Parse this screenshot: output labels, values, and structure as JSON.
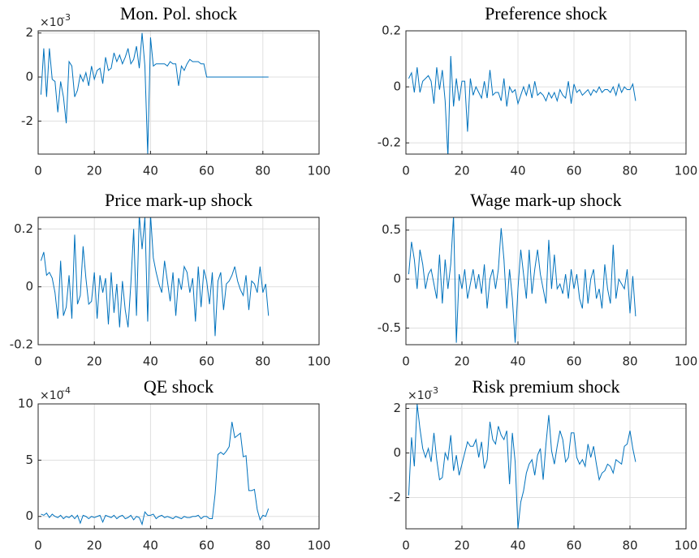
{
  "chart_data": [
    {
      "type": "line",
      "title": "Mon. Pol. shock",
      "y_scale_base": "×10",
      "y_scale_exponent": "-3",
      "x": [
        1,
        2,
        3,
        4,
        5,
        6,
        7,
        8,
        9,
        10,
        11,
        12,
        13,
        14,
        15,
        16,
        17,
        18,
        19,
        20,
        21,
        22,
        23,
        24,
        25,
        26,
        27,
        28,
        29,
        30,
        31,
        32,
        33,
        34,
        35,
        36,
        37,
        38,
        39,
        40,
        41,
        42,
        43,
        44,
        45,
        46,
        47,
        48,
        49,
        50,
        51,
        52,
        53,
        54,
        55,
        56,
        57,
        58,
        59,
        60,
        61,
        62,
        63,
        64,
        65,
        66,
        67,
        68,
        69,
        70,
        71,
        72,
        73,
        74,
        75,
        76,
        77,
        78,
        79,
        80,
        81,
        82
      ],
      "values": [
        -0.8,
        1.3,
        -0.9,
        1.3,
        -0.1,
        -0.2,
        -1.6,
        -0.2,
        -0.9,
        -2.1,
        0.7,
        0.5,
        -0.9,
        -0.6,
        0.1,
        -0.2,
        0.2,
        -0.4,
        0.5,
        -0.1,
        0.3,
        0.4,
        -0.3,
        0.9,
        0.3,
        0.4,
        1.1,
        0.7,
        1.0,
        0.6,
        0.9,
        1.3,
        0.6,
        0.8,
        1.4,
        0.4,
        2.0,
        0.5,
        -3.5,
        1.8,
        0.5,
        0.6,
        0.6,
        0.6,
        0.6,
        0.5,
        0.7,
        0.6,
        0.6,
        -0.4,
        0.5,
        0.3,
        0.6,
        0.8,
        0.7,
        0.7,
        0.7,
        0.6,
        0.6,
        0,
        0,
        0,
        0,
        0,
        0,
        0,
        0,
        0,
        0,
        0,
        0,
        0,
        0,
        0,
        0,
        0,
        0,
        0,
        0,
        0,
        0,
        0
      ],
      "color": "#0072bd",
      "xlim": [
        0,
        100
      ],
      "xticks": [
        0,
        20,
        40,
        60,
        80,
        100
      ],
      "ylim": [
        -3.5,
        2.1
      ],
      "yticks": [
        -2,
        0,
        2
      ],
      "grid": true
    },
    {
      "type": "line",
      "title": "Preference shock",
      "x": [
        1,
        2,
        3,
        4,
        5,
        6,
        7,
        8,
        9,
        10,
        11,
        12,
        13,
        14,
        15,
        16,
        17,
        18,
        19,
        20,
        21,
        22,
        23,
        24,
        25,
        26,
        27,
        28,
        29,
        30,
        31,
        32,
        33,
        34,
        35,
        36,
        37,
        38,
        39,
        40,
        41,
        42,
        43,
        44,
        45,
        46,
        47,
        48,
        49,
        50,
        51,
        52,
        53,
        54,
        55,
        56,
        57,
        58,
        59,
        60,
        61,
        62,
        63,
        64,
        65,
        66,
        67,
        68,
        69,
        70,
        71,
        72,
        73,
        74,
        75,
        76,
        77,
        78,
        79,
        80,
        81,
        82
      ],
      "values": [
        0.03,
        0.05,
        -0.02,
        0.07,
        -0.02,
        0.02,
        0.03,
        0.04,
        0.02,
        -0.06,
        0.07,
        -0.01,
        0.06,
        -0.05,
        -0.25,
        0.11,
        -0.07,
        0.03,
        -0.05,
        0.02,
        0.02,
        -0.16,
        0.03,
        -0.03,
        0,
        -0.02,
        -0.04,
        0.02,
        -0.04,
        0.06,
        -0.03,
        -0.02,
        -0.02,
        -0.05,
        0.03,
        -0.07,
        0,
        -0.02,
        -0.01,
        -0.06,
        -0.03,
        0,
        -0.03,
        0.01,
        -0.04,
        0.02,
        -0.03,
        -0.02,
        -0.03,
        -0.05,
        -0.02,
        -0.04,
        -0.02,
        -0.05,
        -0.01,
        -0.03,
        -0.04,
        0.02,
        -0.06,
        0.01,
        -0.02,
        -0.01,
        -0.03,
        -0.02,
        -0.01,
        -0.03,
        -0.01,
        -0.02,
        0,
        -0.02,
        -0.01,
        -0.01,
        -0.02,
        0,
        -0.03,
        0.01,
        -0.02,
        0,
        -0.01,
        -0.01,
        0.01,
        -0.05
      ],
      "color": "#0072bd",
      "xlim": [
        0,
        100
      ],
      "xticks": [
        0,
        20,
        40,
        60,
        80,
        100
      ],
      "ylim": [
        -0.24,
        0.2
      ],
      "yticks": [
        -0.2,
        0,
        0.2
      ],
      "grid": true
    },
    {
      "type": "line",
      "title": "Price mark-up shock",
      "x": [
        1,
        2,
        3,
        4,
        5,
        6,
        7,
        8,
        9,
        10,
        11,
        12,
        13,
        14,
        15,
        16,
        17,
        18,
        19,
        20,
        21,
        22,
        23,
        24,
        25,
        26,
        27,
        28,
        29,
        30,
        31,
        32,
        33,
        34,
        35,
        36,
        37,
        38,
        39,
        40,
        41,
        42,
        43,
        44,
        45,
        46,
        47,
        48,
        49,
        50,
        51,
        52,
        53,
        54,
        55,
        56,
        57,
        58,
        59,
        60,
        61,
        62,
        63,
        64,
        65,
        66,
        67,
        68,
        69,
        70,
        71,
        72,
        73,
        74,
        75,
        76,
        77,
        78,
        79,
        80,
        81,
        82
      ],
      "values": [
        0.09,
        0.12,
        0.04,
        0.05,
        0.03,
        -0.02,
        -0.11,
        0.09,
        -0.1,
        -0.07,
        0.04,
        -0.11,
        0.18,
        -0.06,
        -0.03,
        0.14,
        0.03,
        -0.06,
        -0.05,
        0.05,
        -0.11,
        0.04,
        -0.02,
        0.03,
        -0.13,
        0.05,
        -0.09,
        0.01,
        -0.14,
        0.02,
        -0.08,
        -0.14,
        0.01,
        0.2,
        -0.1,
        0.25,
        0.13,
        0.24,
        -0.12,
        0.25,
        0.1,
        0.05,
        0.01,
        -0.02,
        0.09,
        0.02,
        -0.05,
        0.05,
        -0.1,
        0.03,
        -0.01,
        0.07,
        0.05,
        -0.02,
        0.03,
        -0.12,
        0.07,
        -0.07,
        0.06,
        0.02,
        -0.06,
        0.05,
        -0.17,
        0.02,
        0.05,
        -0.08,
        0.01,
        0.02,
        0.04,
        0.07,
        0.02,
        -0.01,
        -0.03,
        0.04,
        -0.08,
        0.02,
        0.01,
        -0.02,
        0.07,
        -0.02,
        0.01,
        -0.1
      ],
      "color": "#0072bd",
      "xlim": [
        0,
        100
      ],
      "xticks": [
        0,
        20,
        40,
        60,
        80,
        100
      ],
      "ylim": [
        -0.2,
        0.24
      ],
      "yticks": [
        -0.2,
        0,
        0.2
      ],
      "grid": true
    },
    {
      "type": "line",
      "title": "Wage mark-up shock",
      "x": [
        1,
        2,
        3,
        4,
        5,
        6,
        7,
        8,
        9,
        10,
        11,
        12,
        13,
        14,
        15,
        16,
        17,
        18,
        19,
        20,
        21,
        22,
        23,
        24,
        25,
        26,
        27,
        28,
        29,
        30,
        31,
        32,
        33,
        34,
        35,
        36,
        37,
        38,
        39,
        40,
        41,
        42,
        43,
        44,
        45,
        46,
        47,
        48,
        49,
        50,
        51,
        52,
        53,
        54,
        55,
        56,
        57,
        58,
        59,
        60,
        61,
        62,
        63,
        64,
        65,
        66,
        67,
        68,
        69,
        70,
        71,
        72,
        73,
        74,
        75,
        76,
        77,
        78,
        79,
        80,
        81,
        82
      ],
      "values": [
        0.05,
        0.38,
        0.2,
        -0.1,
        0.3,
        0.15,
        -0.1,
        0.05,
        0.1,
        -0.05,
        -0.2,
        0.25,
        -0.25,
        0.2,
        -0.1,
        0.15,
        0.65,
        -0.65,
        0.05,
        -0.1,
        0.1,
        -0.2,
        -0.05,
        0.1,
        -0.1,
        0.05,
        -0.15,
        0.15,
        -0.3,
        0,
        0.1,
        -0.1,
        0.1,
        0.52,
        0.2,
        -0.3,
        0.1,
        -0.2,
        -0.65,
        -0.1,
        0.3,
        0.05,
        -0.2,
        0.3,
        -0.15,
        0.1,
        0.3,
        0.05,
        -0.1,
        -0.25,
        0.4,
        -0.1,
        0.25,
        -0.1,
        -0.05,
        -0.15,
        0.05,
        -0.2,
        0.1,
        -0.1,
        0.05,
        -0.2,
        -0.3,
        0.1,
        -0.25,
        0,
        0.1,
        -0.2,
        -0.1,
        -0.3,
        0.15,
        -0.1,
        -0.25,
        0.35,
        -0.2,
        0,
        -0.05,
        -0.1,
        0.1,
        -0.35,
        0.03,
        -0.38
      ],
      "color": "#0072bd",
      "xlim": [
        0,
        100
      ],
      "xticks": [
        0,
        20,
        40,
        60,
        80,
        100
      ],
      "ylim": [
        -0.67,
        0.63
      ],
      "yticks": [
        -0.5,
        0,
        0.5
      ],
      "grid": true
    },
    {
      "type": "line",
      "title": "QE shock",
      "y_scale_base": "×10",
      "y_scale_exponent": "-4",
      "x": [
        1,
        2,
        3,
        4,
        5,
        6,
        7,
        8,
        9,
        10,
        11,
        12,
        13,
        14,
        15,
        16,
        17,
        18,
        19,
        20,
        21,
        22,
        23,
        24,
        25,
        26,
        27,
        28,
        29,
        30,
        31,
        32,
        33,
        34,
        35,
        36,
        37,
        38,
        39,
        40,
        41,
        42,
        43,
        44,
        45,
        46,
        47,
        48,
        49,
        50,
        51,
        52,
        53,
        54,
        55,
        56,
        57,
        58,
        59,
        60,
        61,
        62,
        63,
        64,
        65,
        66,
        67,
        68,
        69,
        70,
        71,
        72,
        73,
        74,
        75,
        76,
        77,
        78,
        79,
        80,
        81,
        82
      ],
      "values": [
        0.2,
        0.1,
        0.3,
        -0.1,
        0.2,
        0,
        -0.1,
        0.1,
        -0.2,
        0,
        -0.1,
        0.1,
        -0.2,
        0.1,
        -0.6,
        0.1,
        0,
        -0.2,
        0,
        -0.1,
        0,
        0.1,
        -0.5,
        0.1,
        0,
        -0.1,
        0.1,
        -0.2,
        0,
        0.1,
        -0.2,
        -0.1,
        0.1,
        -0.3,
        0,
        -0.1,
        -0.7,
        0.4,
        0.1,
        0.1,
        0.2,
        -0.2,
        0,
        0.1,
        -0.1,
        0,
        -0.1,
        -0.2,
        0,
        -0.1,
        -0.2,
        0,
        -0.1,
        -0.1,
        0,
        0,
        0.1,
        -0.2,
        0,
        0,
        -0.2,
        -0.2,
        2,
        5.5,
        5.7,
        5.5,
        5.8,
        6.2,
        8.4,
        7.0,
        7.2,
        7.4,
        5.3,
        5.4,
        2.3,
        2.3,
        2.4,
        0.6,
        -0.3,
        0.1,
        0,
        0.7
      ],
      "color": "#0072bd",
      "xlim": [
        0,
        100
      ],
      "xticks": [
        0,
        20,
        40,
        60,
        80,
        100
      ],
      "ylim": [
        -1.1,
        10
      ],
      "yticks": [
        0,
        5,
        10
      ],
      "grid": true
    },
    {
      "type": "line",
      "title": "Risk premium shock",
      "y_scale_base": "×10",
      "y_scale_exponent": "-3",
      "x": [
        1,
        2,
        3,
        4,
        5,
        6,
        7,
        8,
        9,
        10,
        11,
        12,
        13,
        14,
        15,
        16,
        17,
        18,
        19,
        20,
        21,
        22,
        23,
        24,
        25,
        26,
        27,
        28,
        29,
        30,
        31,
        32,
        33,
        34,
        35,
        36,
        37,
        38,
        39,
        40,
        41,
        42,
        43,
        44,
        45,
        46,
        47,
        48,
        49,
        50,
        51,
        52,
        53,
        54,
        55,
        56,
        57,
        58,
        59,
        60,
        61,
        62,
        63,
        64,
        65,
        66,
        67,
        68,
        69,
        70,
        71,
        72,
        73,
        74,
        75,
        76,
        77,
        78,
        79,
        80,
        81,
        82
      ],
      "values": [
        -1.9,
        0.7,
        -0.6,
        2.2,
        1.1,
        0.2,
        -0.2,
        0.2,
        -0.4,
        0.9,
        -0.3,
        -1.2,
        -1.1,
        0,
        -0.3,
        0.8,
        -0.8,
        -0.1,
        -1,
        -0.5,
        0,
        0.5,
        0.3,
        0.3,
        0.6,
        -0.2,
        0.5,
        -0.7,
        -0.3,
        1.4,
        0.6,
        0.4,
        1.2,
        0.8,
        0.6,
        1.0,
        -1.4,
        0.9,
        -0.4,
        -3.4,
        -2.2,
        -1.7,
        -0.9,
        -0.5,
        -0.3,
        -1.0,
        -0.1,
        0.2,
        -1.2,
        0.4,
        1.7,
        0.1,
        -0.5,
        0.3,
        1.0,
        0.6,
        -0.4,
        -0.2,
        0.9,
        0.9,
        -0.2,
        -0.5,
        -0.3,
        -0.6,
        0.4,
        -0.2,
        0.3,
        -0.5,
        -1.2,
        -0.9,
        -0.8,
        -0.5,
        -0.6,
        -0.9,
        -0.3,
        -0.4,
        -0.5,
        0.3,
        0.4,
        1.0,
        0.2,
        -0.4
      ],
      "color": "#0072bd",
      "xlim": [
        0,
        100
      ],
      "xticks": [
        0,
        20,
        40,
        60,
        80,
        100
      ],
      "ylim": [
        -3.4,
        2.2
      ],
      "yticks": [
        -2,
        0,
        2
      ],
      "grid": true
    }
  ]
}
